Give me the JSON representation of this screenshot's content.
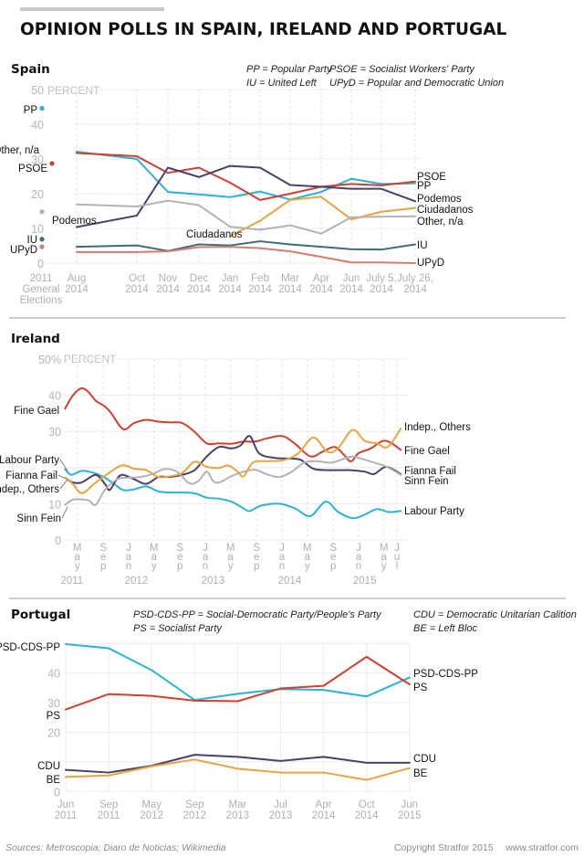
{
  "title": "OPINION POLLS IN SPAIN, IRELAND AND PORTUGAL",
  "footer": {
    "sources": "Sources: Metroscopia; Diaro de Noticias; Wikimedia",
    "copyright": "Copyright Stratfor 2015",
    "website": "www.stratfor.com"
  },
  "chart_data": [
    {
      "type": "line",
      "title": "Spain",
      "ylabel": "PERCENT",
      "ylim": [
        0,
        50
      ],
      "yticks": [
        "0",
        "10",
        "20",
        "30",
        "40",
        "50"
      ],
      "grid": true,
      "legend": [
        "PP = Popular Party",
        "IU = United Left",
        "PSOE = Socialist Workers' Party",
        "UPyD = Popular and Democratic Union"
      ],
      "baseline_label": [
        "2011",
        "General",
        "Elections"
      ],
      "categories": [
        [
          "Aug",
          "2014"
        ],
        [
          "Oct",
          "2014"
        ],
        [
          "Nov",
          "2014"
        ],
        [
          "Dec",
          "2014"
        ],
        [
          "Jan",
          "2014"
        ],
        [
          "Feb",
          "2014"
        ],
        [
          "Mar",
          "2014"
        ],
        [
          "Apr",
          "2014"
        ],
        [
          "Jun",
          "2014"
        ],
        [
          "July 5,",
          "2014"
        ],
        [
          "July 26,",
          "2014"
        ]
      ],
      "series": [
        {
          "name": "PP",
          "color": "#2ab3d9",
          "baseline": 44.6,
          "values": [
            32.1,
            30.0,
            20.5,
            19.8,
            19.0,
            20.6,
            18.3,
            20.5,
            24.3,
            22.8,
            23.0
          ]
        },
        {
          "name": "PSOE",
          "color": "#d2402d",
          "baseline": 28.7,
          "values": [
            31.7,
            30.8,
            26.0,
            27.5,
            23.2,
            18.2,
            20.0,
            22.0,
            22.8,
            22.4,
            23.5
          ]
        },
        {
          "name": "Podemos",
          "color": "#4b3f6e",
          "values": [
            10.4,
            13.7,
            27.5,
            24.8,
            28.0,
            27.5,
            22.5,
            22.0,
            21.4,
            21.4,
            17.8
          ]
        },
        {
          "name": "Ciudadanos",
          "color": "#e9a43e",
          "values": [
            null,
            null,
            null,
            null,
            7.7,
            12.2,
            18.2,
            19.1,
            12.6,
            14.8,
            15.9
          ]
        },
        {
          "name": "Other, n/a",
          "right_label": "Other, n/a",
          "color": "#b3b3b3",
          "baseline": 14.8,
          "values": [
            16.9,
            16.3,
            18.0,
            16.7,
            10.5,
            9.6,
            10.9,
            8.5,
            13.2,
            13.4,
            13.5
          ]
        },
        {
          "name": "IU",
          "color": "#3e6c77",
          "baseline": 6.9,
          "values": [
            4.7,
            5.1,
            3.5,
            5.4,
            5.1,
            6.3,
            5.4,
            4.7,
            4.0,
            3.9,
            5.4
          ]
        },
        {
          "name": "UPyD",
          "color": "#d57e70",
          "baseline": 4.7,
          "values": [
            3.2,
            3.2,
            3.4,
            4.6,
            4.7,
            4.3,
            3.4,
            1.8,
            0.2,
            0.2,
            0.0
          ]
        }
      ]
    },
    {
      "type": "line",
      "title": "Ireland",
      "ylabel": "PERCENT",
      "ylim": [
        0,
        50
      ],
      "yticks": [
        {
          "v": 0,
          "label": "0"
        },
        {
          "v": 10,
          "label": "10"
        },
        {
          "v": 30,
          "label": "30"
        },
        {
          "v": 40,
          "label": "40"
        },
        {
          "v": 50,
          "label": "50%"
        }
      ],
      "grid": true,
      "xticks": [
        {
          "x": 2011.33,
          "label": "May"
        },
        {
          "x": 2011.67,
          "label": "Sep"
        },
        {
          "x": 2012.0,
          "label": "Jan"
        },
        {
          "x": 2012.33,
          "label": "May"
        },
        {
          "x": 2012.67,
          "label": "Sep"
        },
        {
          "x": 2013.0,
          "label": "Jan"
        },
        {
          "x": 2013.33,
          "label": "May"
        },
        {
          "x": 2013.67,
          "label": "Sep"
        },
        {
          "x": 2014.0,
          "label": "Jan"
        },
        {
          "x": 2014.33,
          "label": "May"
        },
        {
          "x": 2014.67,
          "label": "Sep"
        },
        {
          "x": 2015.0,
          "label": "Jan"
        },
        {
          "x": 2015.33,
          "label": "May"
        },
        {
          "x": 2015.5,
          "label": "Jul"
        }
      ],
      "years": [
        {
          "x": 2011.26,
          "label": "2011"
        },
        {
          "x": 2012.1,
          "label": "2012"
        },
        {
          "x": 2013.1,
          "label": "2013"
        },
        {
          "x": 2014.1,
          "label": "2014"
        },
        {
          "x": 2015.08,
          "label": "2015"
        }
      ],
      "series": [
        {
          "name": "Fine Gael",
          "color": "#d2402d",
          "x": [
            2011.17,
            2011.27,
            2011.38,
            2011.47,
            2011.57,
            2011.69,
            2011.77,
            2011.93,
            2012.07,
            2012.23,
            2012.39,
            2012.54,
            2012.7,
            2012.86,
            2013.02,
            2013.18,
            2013.34,
            2013.5,
            2013.65,
            2013.81,
            2014.01,
            2014.17,
            2014.37,
            2014.53,
            2014.69,
            2014.81,
            2014.9,
            2015.0,
            2015.16,
            2015.32,
            2015.44,
            2015.55
          ],
          "values": [
            36.3,
            39.9,
            41.9,
            41.0,
            38.5,
            36.9,
            35.1,
            30.6,
            32.3,
            33.2,
            32.7,
            32.5,
            32.3,
            29.9,
            26.7,
            26.7,
            26.6,
            27.2,
            27.2,
            28.1,
            28.7,
            26.6,
            23.1,
            24.4,
            25.7,
            23.5,
            21.7,
            24.0,
            25.3,
            27.4,
            26.6,
            24.9
          ]
        },
        {
          "name": "Labour Party",
          "color": "#2ab3d9",
          "x": [
            2011.17,
            2011.25,
            2011.39,
            2011.55,
            2011.69,
            2011.81,
            2011.93,
            2012.07,
            2012.23,
            2012.39,
            2012.54,
            2012.7,
            2012.86,
            2013.02,
            2013.18,
            2013.34,
            2013.5,
            2013.58,
            2013.73,
            2013.97,
            2014.17,
            2014.37,
            2014.57,
            2014.73,
            2014.92,
            2015.08,
            2015.24,
            2015.4,
            2015.55
          ],
          "values": [
            19.6,
            18.0,
            19.1,
            18.5,
            17.2,
            15.5,
            13.8,
            14.0,
            14.8,
            13.4,
            13.1,
            13.1,
            12.9,
            11.7,
            11.4,
            10.6,
            8.7,
            8.0,
            9.5,
            10.0,
            8.7,
            6.6,
            10.6,
            7.8,
            6.0,
            7.0,
            8.5,
            7.7,
            8.0
          ]
        },
        {
          "name": "Fianna Fail",
          "color": "#4b3f6e",
          "x": [
            2011.17,
            2011.27,
            2011.39,
            2011.57,
            2011.69,
            2011.75,
            2011.83,
            2011.91,
            2012.07,
            2012.23,
            2012.39,
            2012.54,
            2012.7,
            2012.86,
            2013.02,
            2013.18,
            2013.34,
            2013.46,
            2013.58,
            2013.7,
            2013.9,
            2014.13,
            2014.25,
            2014.41,
            2014.61,
            2014.89,
            2015.08,
            2015.2,
            2015.36,
            2015.55
          ],
          "values": [
            17.2,
            15.9,
            15.9,
            18.0,
            15.5,
            13.8,
            16.3,
            18.0,
            16.8,
            15.5,
            17.4,
            17.4,
            18.0,
            19.3,
            23.1,
            25.7,
            25.3,
            26.1,
            28.7,
            24.0,
            22.7,
            22.5,
            22.1,
            19.7,
            19.3,
            19.3,
            18.9,
            18.2,
            20.2,
            18.2
          ]
        },
        {
          "name": "Sinn Fein",
          "color": "#b3b3b3",
          "x": [
            2011.17,
            2011.27,
            2011.39,
            2011.49,
            2011.57,
            2011.69,
            2011.85,
            2011.99,
            2012.15,
            2012.31,
            2012.47,
            2012.63,
            2012.79,
            2012.91,
            2013.02,
            2013.1,
            2013.18,
            2013.34,
            2013.5,
            2013.65,
            2013.81,
            2013.97,
            2014.13,
            2014.29,
            2014.45,
            2014.65,
            2014.89,
            2015.0,
            2015.2,
            2015.36,
            2015.55
          ],
          "values": [
            9.7,
            11.1,
            11.2,
            10.8,
            9.7,
            13.8,
            16.8,
            17.2,
            17.4,
            18.2,
            19.6,
            18.9,
            15.7,
            16.3,
            18.9,
            16.3,
            15.9,
            17.6,
            18.9,
            19.4,
            18.1,
            17.4,
            18.9,
            21.4,
            21.8,
            21.4,
            23.0,
            22.7,
            21.4,
            20.3,
            18.0
          ]
        },
        {
          "name": "Indep., Others",
          "color": "#e9a43e",
          "x": [
            2011.17,
            2011.27,
            2011.39,
            2011.55,
            2011.71,
            2011.91,
            2012.07,
            2012.23,
            2012.39,
            2012.54,
            2012.7,
            2012.86,
            2013.02,
            2013.18,
            2013.3,
            2013.42,
            2013.5,
            2013.62,
            2013.81,
            2014.01,
            2014.21,
            2014.41,
            2014.59,
            2014.73,
            2014.92,
            2015.08,
            2015.24,
            2015.38,
            2015.55
          ],
          "values": [
            17.2,
            15.5,
            12.9,
            15.5,
            18.0,
            20.6,
            19.7,
            19.3,
            17.4,
            17.6,
            18.5,
            21.6,
            20.2,
            19.9,
            20.6,
            18.9,
            17.6,
            21.4,
            21.8,
            22.0,
            23.9,
            28.3,
            24.4,
            25.3,
            30.4,
            27.4,
            26.7,
            25.7,
            30.8
          ]
        }
      ]
    },
    {
      "type": "line",
      "title": "Portugal",
      "ylim": [
        0,
        50
      ],
      "yticks": [
        {
          "v": 0,
          "label": "0"
        },
        {
          "v": 20,
          "label": "20"
        },
        {
          "v": 30,
          "label": "30"
        },
        {
          "v": 40,
          "label": "40"
        }
      ],
      "grid": true,
      "legend": [
        "PSD-CDS-PP = Social-Democratic Party/People's Party",
        "PS = Socialist Party",
        "CDU = Democratic Unitarian Calition",
        "BE = Left Bloc"
      ],
      "categories": [
        [
          "Jun",
          "2011"
        ],
        [
          "Sep",
          "2011"
        ],
        [
          "May",
          "2012"
        ],
        [
          "Sep",
          "2012"
        ],
        [
          "Mar",
          "2013"
        ],
        [
          "Jul",
          "2013"
        ],
        [
          "Apr",
          "2014"
        ],
        [
          "Oct",
          "2014"
        ],
        [
          "Jun",
          "2015"
        ]
      ],
      "series": [
        {
          "name": "PSD-CDS-PP",
          "color": "#2ab3d9",
          "values": [
            49.8,
            48.4,
            41.0,
            30.9,
            33.0,
            34.6,
            34.3,
            32.1,
            38.5
          ]
        },
        {
          "name": "PS",
          "color": "#d2402d",
          "values": [
            27.7,
            32.9,
            32.3,
            30.7,
            30.5,
            34.8,
            35.7,
            45.5,
            36.2
          ]
        },
        {
          "name": "CDU",
          "color": "#4b3f6e",
          "values": [
            7.3,
            6.4,
            8.7,
            12.4,
            11.7,
            10.3,
            11.7,
            9.7,
            9.7
          ]
        },
        {
          "name": "BE",
          "color": "#e9a43e",
          "values": [
            4.9,
            5.4,
            8.5,
            10.8,
            7.7,
            6.4,
            6.4,
            3.9,
            7.9
          ]
        }
      ]
    }
  ]
}
